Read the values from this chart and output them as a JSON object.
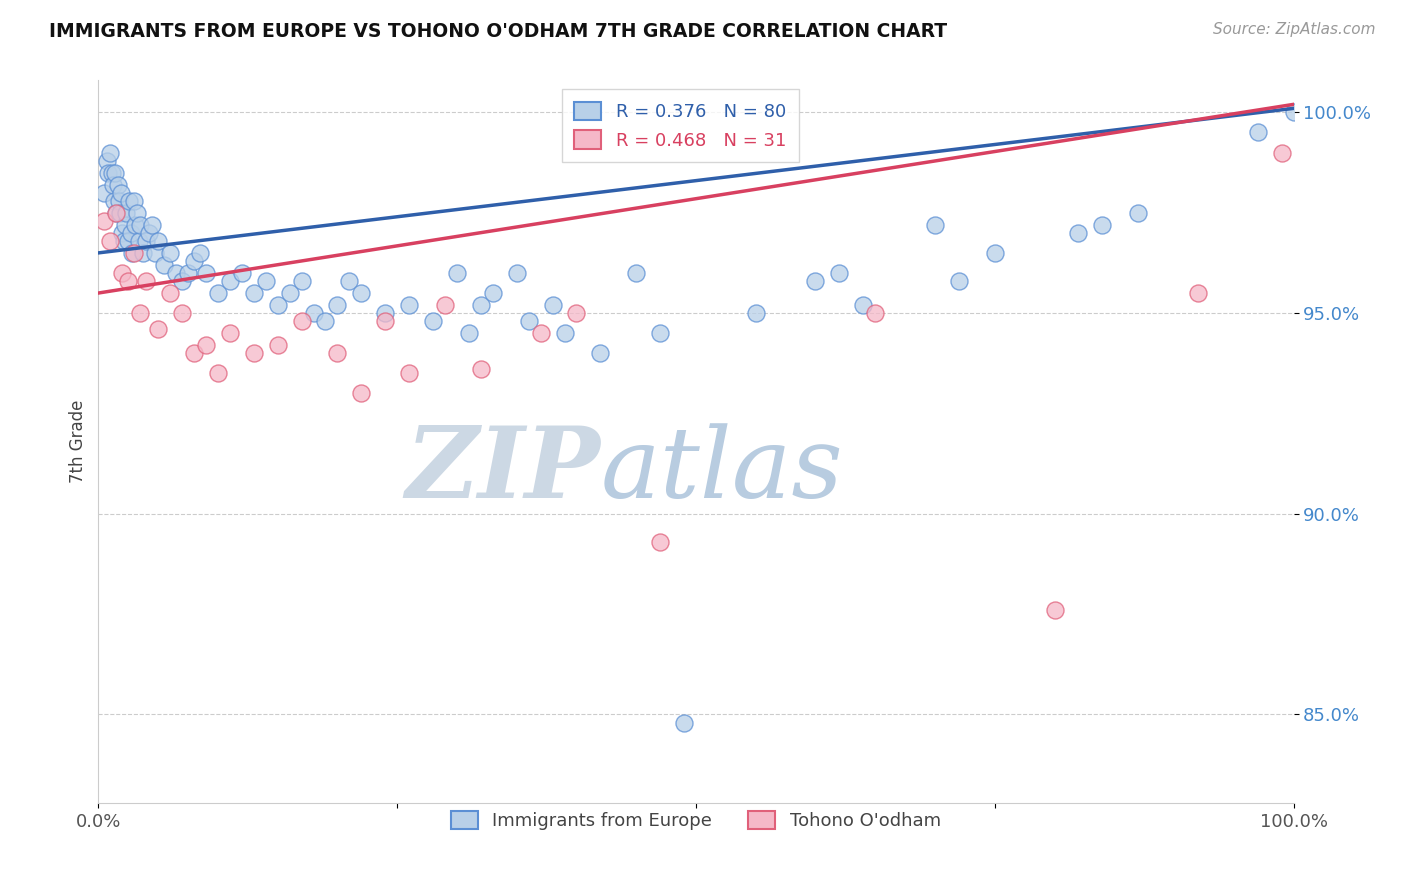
{
  "title": "IMMIGRANTS FROM EUROPE VS TOHONO O'ODHAM 7TH GRADE CORRELATION CHART",
  "source": "Source: ZipAtlas.com",
  "ylabel": "7th Grade",
  "xlim": [
    0.0,
    1.0
  ],
  "ylim": [
    0.828,
    1.008
  ],
  "yticks": [
    0.85,
    0.9,
    0.95,
    1.0
  ],
  "ytick_labels": [
    "85.0%",
    "90.0%",
    "95.0%",
    "100.0%"
  ],
  "xticks": [
    0.0,
    0.25,
    0.5,
    0.75,
    1.0
  ],
  "xtick_labels": [
    "0.0%",
    "",
    "",
    "",
    "100.0%"
  ],
  "blue_R": 0.376,
  "blue_N": 80,
  "pink_R": 0.468,
  "pink_N": 31,
  "legend_label_blue": "Immigrants from Europe",
  "legend_label_pink": "Tohono O'odham",
  "blue_color": "#b8d0e8",
  "blue_edge_color": "#5b8fd4",
  "blue_line_color": "#2f5faa",
  "pink_color": "#f5b8c8",
  "pink_edge_color": "#e0607a",
  "pink_line_color": "#d84060",
  "watermark_zip": "ZIP",
  "watermark_atlas": "atlas",
  "watermark_zip_color": "#ccd8e4",
  "watermark_atlas_color": "#b8cce0",
  "blue_trend_x0": 0.0,
  "blue_trend_y0": 0.965,
  "blue_trend_x1": 1.0,
  "blue_trend_y1": 1.001,
  "pink_trend_x0": 0.0,
  "pink_trend_y0": 0.955,
  "pink_trend_x1": 1.0,
  "pink_trend_y1": 1.002,
  "blue_x": [
    0.005,
    0.007,
    0.008,
    0.01,
    0.011,
    0.012,
    0.013,
    0.014,
    0.015,
    0.016,
    0.017,
    0.018,
    0.019,
    0.02,
    0.021,
    0.022,
    0.023,
    0.025,
    0.026,
    0.027,
    0.028,
    0.03,
    0.031,
    0.032,
    0.034,
    0.035,
    0.037,
    0.04,
    0.042,
    0.045,
    0.047,
    0.05,
    0.055,
    0.06,
    0.065,
    0.07,
    0.075,
    0.08,
    0.085,
    0.09,
    0.1,
    0.11,
    0.12,
    0.13,
    0.14,
    0.15,
    0.16,
    0.17,
    0.18,
    0.19,
    0.2,
    0.21,
    0.22,
    0.24,
    0.26,
    0.28,
    0.3,
    0.31,
    0.32,
    0.33,
    0.35,
    0.36,
    0.38,
    0.39,
    0.42,
    0.45,
    0.47,
    0.49,
    0.55,
    0.6,
    0.62,
    0.64,
    0.7,
    0.72,
    0.75,
    0.82,
    0.84,
    0.87,
    0.97,
    1.0
  ],
  "blue_y": [
    0.98,
    0.988,
    0.985,
    0.99,
    0.985,
    0.982,
    0.978,
    0.985,
    0.975,
    0.982,
    0.978,
    0.975,
    0.98,
    0.97,
    0.968,
    0.972,
    0.975,
    0.968,
    0.978,
    0.97,
    0.965,
    0.978,
    0.972,
    0.975,
    0.968,
    0.972,
    0.965,
    0.968,
    0.97,
    0.972,
    0.965,
    0.968,
    0.962,
    0.965,
    0.96,
    0.958,
    0.96,
    0.963,
    0.965,
    0.96,
    0.955,
    0.958,
    0.96,
    0.955,
    0.958,
    0.952,
    0.955,
    0.958,
    0.95,
    0.948,
    0.952,
    0.958,
    0.955,
    0.95,
    0.952,
    0.948,
    0.96,
    0.945,
    0.952,
    0.955,
    0.96,
    0.948,
    0.952,
    0.945,
    0.94,
    0.96,
    0.945,
    0.848,
    0.95,
    0.958,
    0.96,
    0.952,
    0.972,
    0.958,
    0.965,
    0.97,
    0.972,
    0.975,
    0.995,
    1.0
  ],
  "pink_x": [
    0.005,
    0.01,
    0.015,
    0.02,
    0.025,
    0.03,
    0.035,
    0.04,
    0.05,
    0.06,
    0.07,
    0.08,
    0.09,
    0.1,
    0.11,
    0.13,
    0.15,
    0.17,
    0.2,
    0.22,
    0.24,
    0.26,
    0.29,
    0.32,
    0.37,
    0.4,
    0.47,
    0.65,
    0.8,
    0.92,
    0.99
  ],
  "pink_y": [
    0.973,
    0.968,
    0.975,
    0.96,
    0.958,
    0.965,
    0.95,
    0.958,
    0.946,
    0.955,
    0.95,
    0.94,
    0.942,
    0.935,
    0.945,
    0.94,
    0.942,
    0.948,
    0.94,
    0.93,
    0.948,
    0.935,
    0.952,
    0.936,
    0.945,
    0.95,
    0.893,
    0.95,
    0.876,
    0.955,
    0.99
  ]
}
